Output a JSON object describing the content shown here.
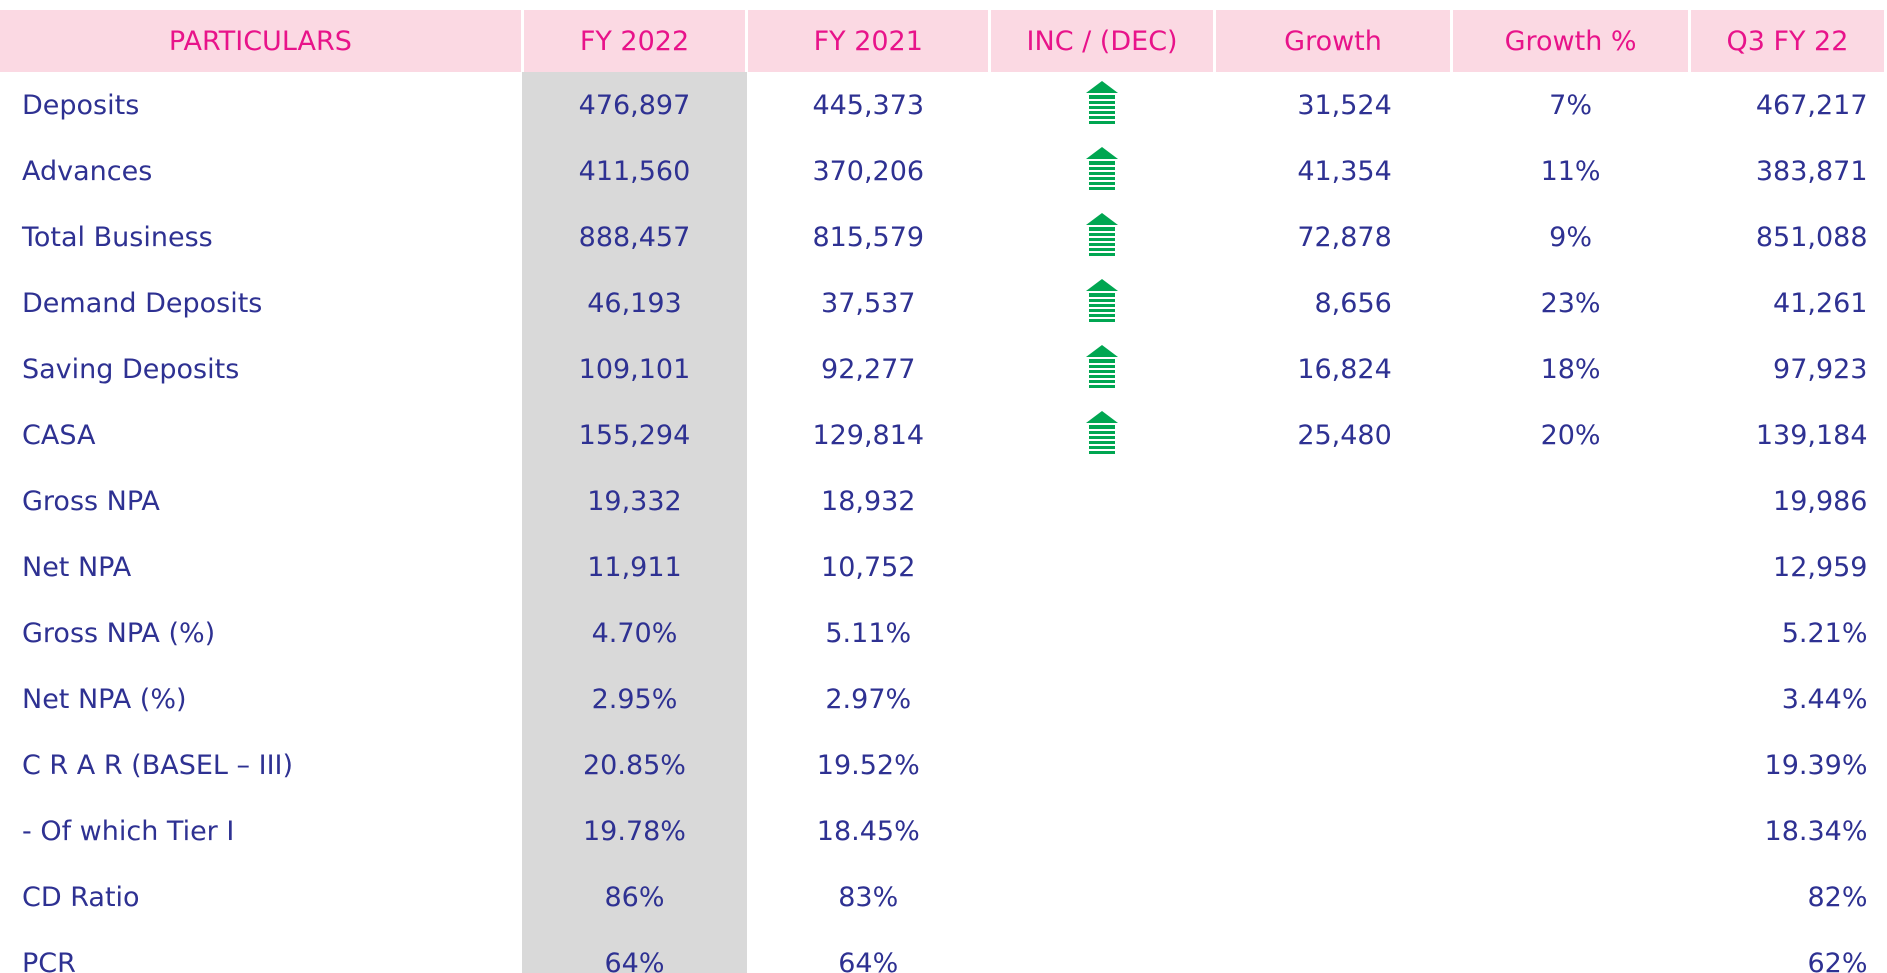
{
  "table": {
    "header": [
      "PARTICULARS",
      "FY  2022",
      "FY  2021",
      "INC / (DEC)",
      "Growth",
      "Growth %",
      "Q3 FY 22"
    ],
    "rows": [
      {
        "label": "Deposits",
        "fy2022": "476,897",
        "fy2021": "445,373",
        "growth": "31,524",
        "growth_pct": "7%",
        "q3": "467,217"
      },
      {
        "label": "Advances",
        "fy2022": "411,560",
        "fy2021": "370,206",
        "growth": "41,354",
        "growth_pct": "11%",
        "q3": "383,871"
      },
      {
        "label": "Total Business",
        "fy2022": "888,457",
        "fy2021": "815,579",
        "growth": "72,878",
        "growth_pct": "9%",
        "q3": "851,088"
      },
      {
        "label": "Demand Deposits",
        "fy2022": "46,193",
        "fy2021": "37,537",
        "growth": "8,656",
        "growth_pct": "23%",
        "q3": "41,261"
      },
      {
        "label": "Saving Deposits",
        "fy2022": "109,101",
        "fy2021": "92,277",
        "growth": "16,824",
        "growth_pct": "18%",
        "q3": "97,923"
      },
      {
        "label": "CASA",
        "fy2022": "155,294",
        "fy2021": "129,814",
        "growth": "25,480",
        "growth_pct": "20%",
        "q3": "139,184"
      },
      {
        "label": "Gross NPA",
        "fy2022": "19,332",
        "fy2021": "18,932",
        "q3": "19,986"
      },
      {
        "label": "Net NPA",
        "fy2022": "11,911",
        "fy2021": "10,752",
        "q3": "12,959"
      },
      {
        "label": "Gross NPA (%)",
        "fy2022": "4.70%",
        "fy2021": "5.11%",
        "q3": "5.21%"
      },
      {
        "label": "Net NPA (%)",
        "fy2022": "2.95%",
        "fy2021": "2.97%",
        "q3": "3.44%"
      },
      {
        "label": "C R A R (BASEL – III)",
        "fy2022": "20.85%",
        "fy2021": "19.52%",
        "q3": "19.39%"
      },
      {
        "label": "- Of which Tier I",
        "fy2022": "19.78%",
        "fy2021": "18.45%",
        "q3": "18.34%"
      },
      {
        "label": "CD Ratio",
        "fy2022": "86%",
        "fy2021": "83%",
        "q3": "82%"
      },
      {
        "label": "PCR",
        "fy2022": "64%",
        "fy2021": "64%",
        "q3": "62%"
      }
    ]
  }
}
